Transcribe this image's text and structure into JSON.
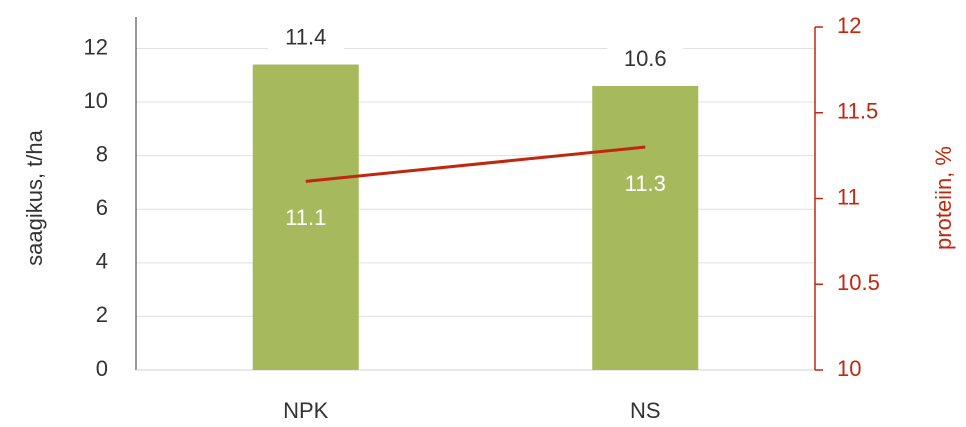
{
  "chart_data": {
    "type": "bar_line",
    "categories": [
      "NPK",
      "NS"
    ],
    "series": [
      {
        "name": "saagikus",
        "color": "#a6b95c",
        "values": [
          11.4,
          10.6
        ],
        "axis": "y"
      },
      {
        "name": "proteiin",
        "color": "#c0270e",
        "values": [
          11.1,
          11.3
        ],
        "axis": "y2"
      }
    ],
    "ylabel": "saagikus, t/ha",
    "y2label": "proteiin, %",
    "ylim": [
      0,
      12.8
    ],
    "yticks": [
      0,
      2,
      4,
      6,
      8,
      10,
      12
    ],
    "y2lim": [
      10,
      12
    ],
    "y2ticks": [
      10,
      10.5,
      11,
      11.5,
      12
    ],
    "grid": true
  }
}
